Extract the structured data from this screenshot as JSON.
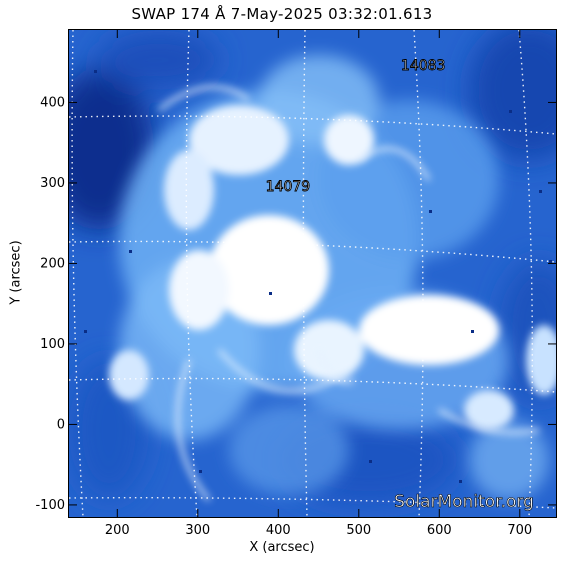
{
  "title": "SWAP 174 Å  7-May-2025 03:32:01.613",
  "xlabel": "X (arcsec)",
  "ylabel": "Y (arcsec)",
  "regions": {
    "region_a": "14079",
    "region_b": "14083"
  },
  "watermark": "SolarMonitor.org",
  "colors": {
    "colormap_dark": "#0b2a8a",
    "colormap_mid": "#2a6ed8",
    "colormap_light": "#9fd0ff",
    "saturated": "#ffffff"
  },
  "chart_data": {
    "type": "heatmap",
    "title": "SWAP 174 Å  7-May-2025 03:32:01.613",
    "xlabel": "X (arcsec)",
    "ylabel": "Y (arcsec)",
    "xlim": [
      140,
      745
    ],
    "ylim": [
      -115,
      490
    ],
    "x_ticks": [
      {
        "value": 200,
        "label": "200"
      },
      {
        "value": 300,
        "label": "300"
      },
      {
        "value": 400,
        "label": "400"
      },
      {
        "value": 500,
        "label": "500"
      },
      {
        "value": 600,
        "label": "600"
      },
      {
        "value": 700,
        "label": "700"
      }
    ],
    "y_ticks": [
      {
        "value": -100,
        "label": "-100"
      },
      {
        "value": 0,
        "label": "0"
      },
      {
        "value": 100,
        "label": "100"
      },
      {
        "value": 200,
        "label": "200"
      },
      {
        "value": 300,
        "label": "300"
      },
      {
        "value": 400,
        "label": "400"
      }
    ],
    "grid": "dotted heliographic grid",
    "annotations": [
      {
        "text": "14079",
        "x": 412,
        "y": 290
      },
      {
        "text": "14083",
        "x": 580,
        "y": 440
      }
    ]
  }
}
